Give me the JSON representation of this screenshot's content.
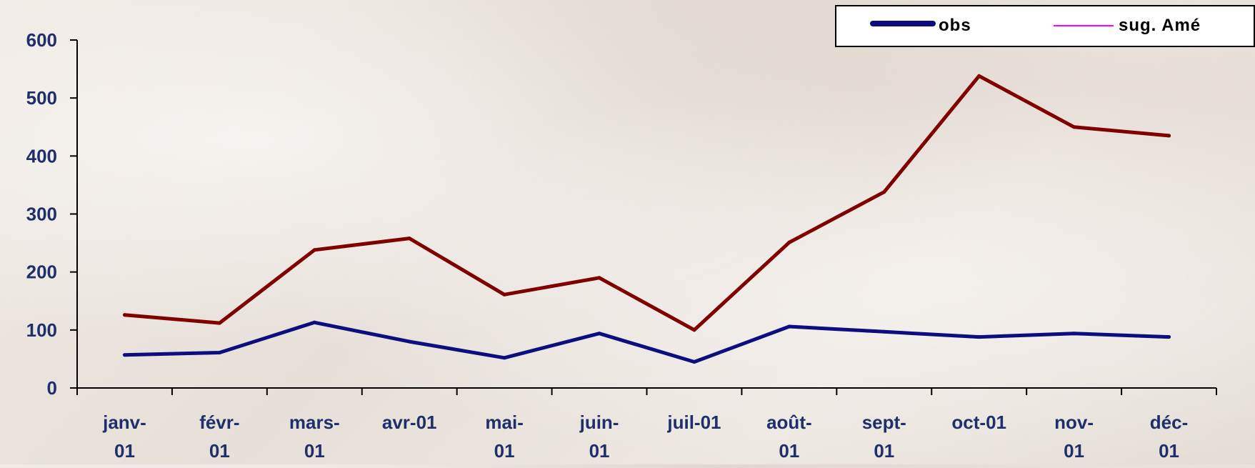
{
  "chart_data": {
    "type": "line",
    "title": "",
    "xlabel": "",
    "ylabel": "",
    "ylim": [
      0,
      600
    ],
    "yticks": [
      0,
      100,
      200,
      300,
      400,
      500,
      600
    ],
    "ytick_labels": [
      "0",
      "100",
      "200",
      "300",
      "400",
      "500",
      "600"
    ],
    "grid": false,
    "legend_position": "top-right",
    "categories": [
      "janv-01",
      "févr-01",
      "mars-01",
      "avr-01",
      "mai-01",
      "juin-01",
      "juil-01",
      "août-01",
      "sept-01",
      "oct-01",
      "nov-01",
      "déc-01"
    ],
    "category_label_lines": [
      [
        "janv-",
        "01"
      ],
      [
        "févr-",
        "01"
      ],
      [
        "mars-",
        "01"
      ],
      [
        "avr-01"
      ],
      [
        "mai-",
        "01"
      ],
      [
        "juin-",
        "01"
      ],
      [
        "juil-01"
      ],
      [
        "août-",
        "01"
      ],
      [
        "sept-",
        "01"
      ],
      [
        "oct-01"
      ],
      [
        "nov-",
        "01"
      ],
      [
        "déc-",
        "01"
      ]
    ],
    "series": [
      {
        "name": "obs",
        "color": "#0d0d80",
        "values": [
          57,
          61,
          113,
          80,
          52,
          94,
          45,
          106,
          97,
          88,
          94,
          88
        ]
      },
      {
        "name": "",
        "color": "#800000",
        "values": [
          126,
          112,
          238,
          258,
          161,
          190,
          100,
          251,
          338,
          538,
          450,
          435
        ]
      }
    ],
    "legend": [
      {
        "label": "obs",
        "color": "#0d0d80",
        "style": "thick"
      },
      {
        "label": "sug. Amé",
        "color": "#ff00ff",
        "style": "thin"
      }
    ],
    "colors": {
      "axis": "#000000",
      "tick_text": "#1f2f6b"
    }
  }
}
